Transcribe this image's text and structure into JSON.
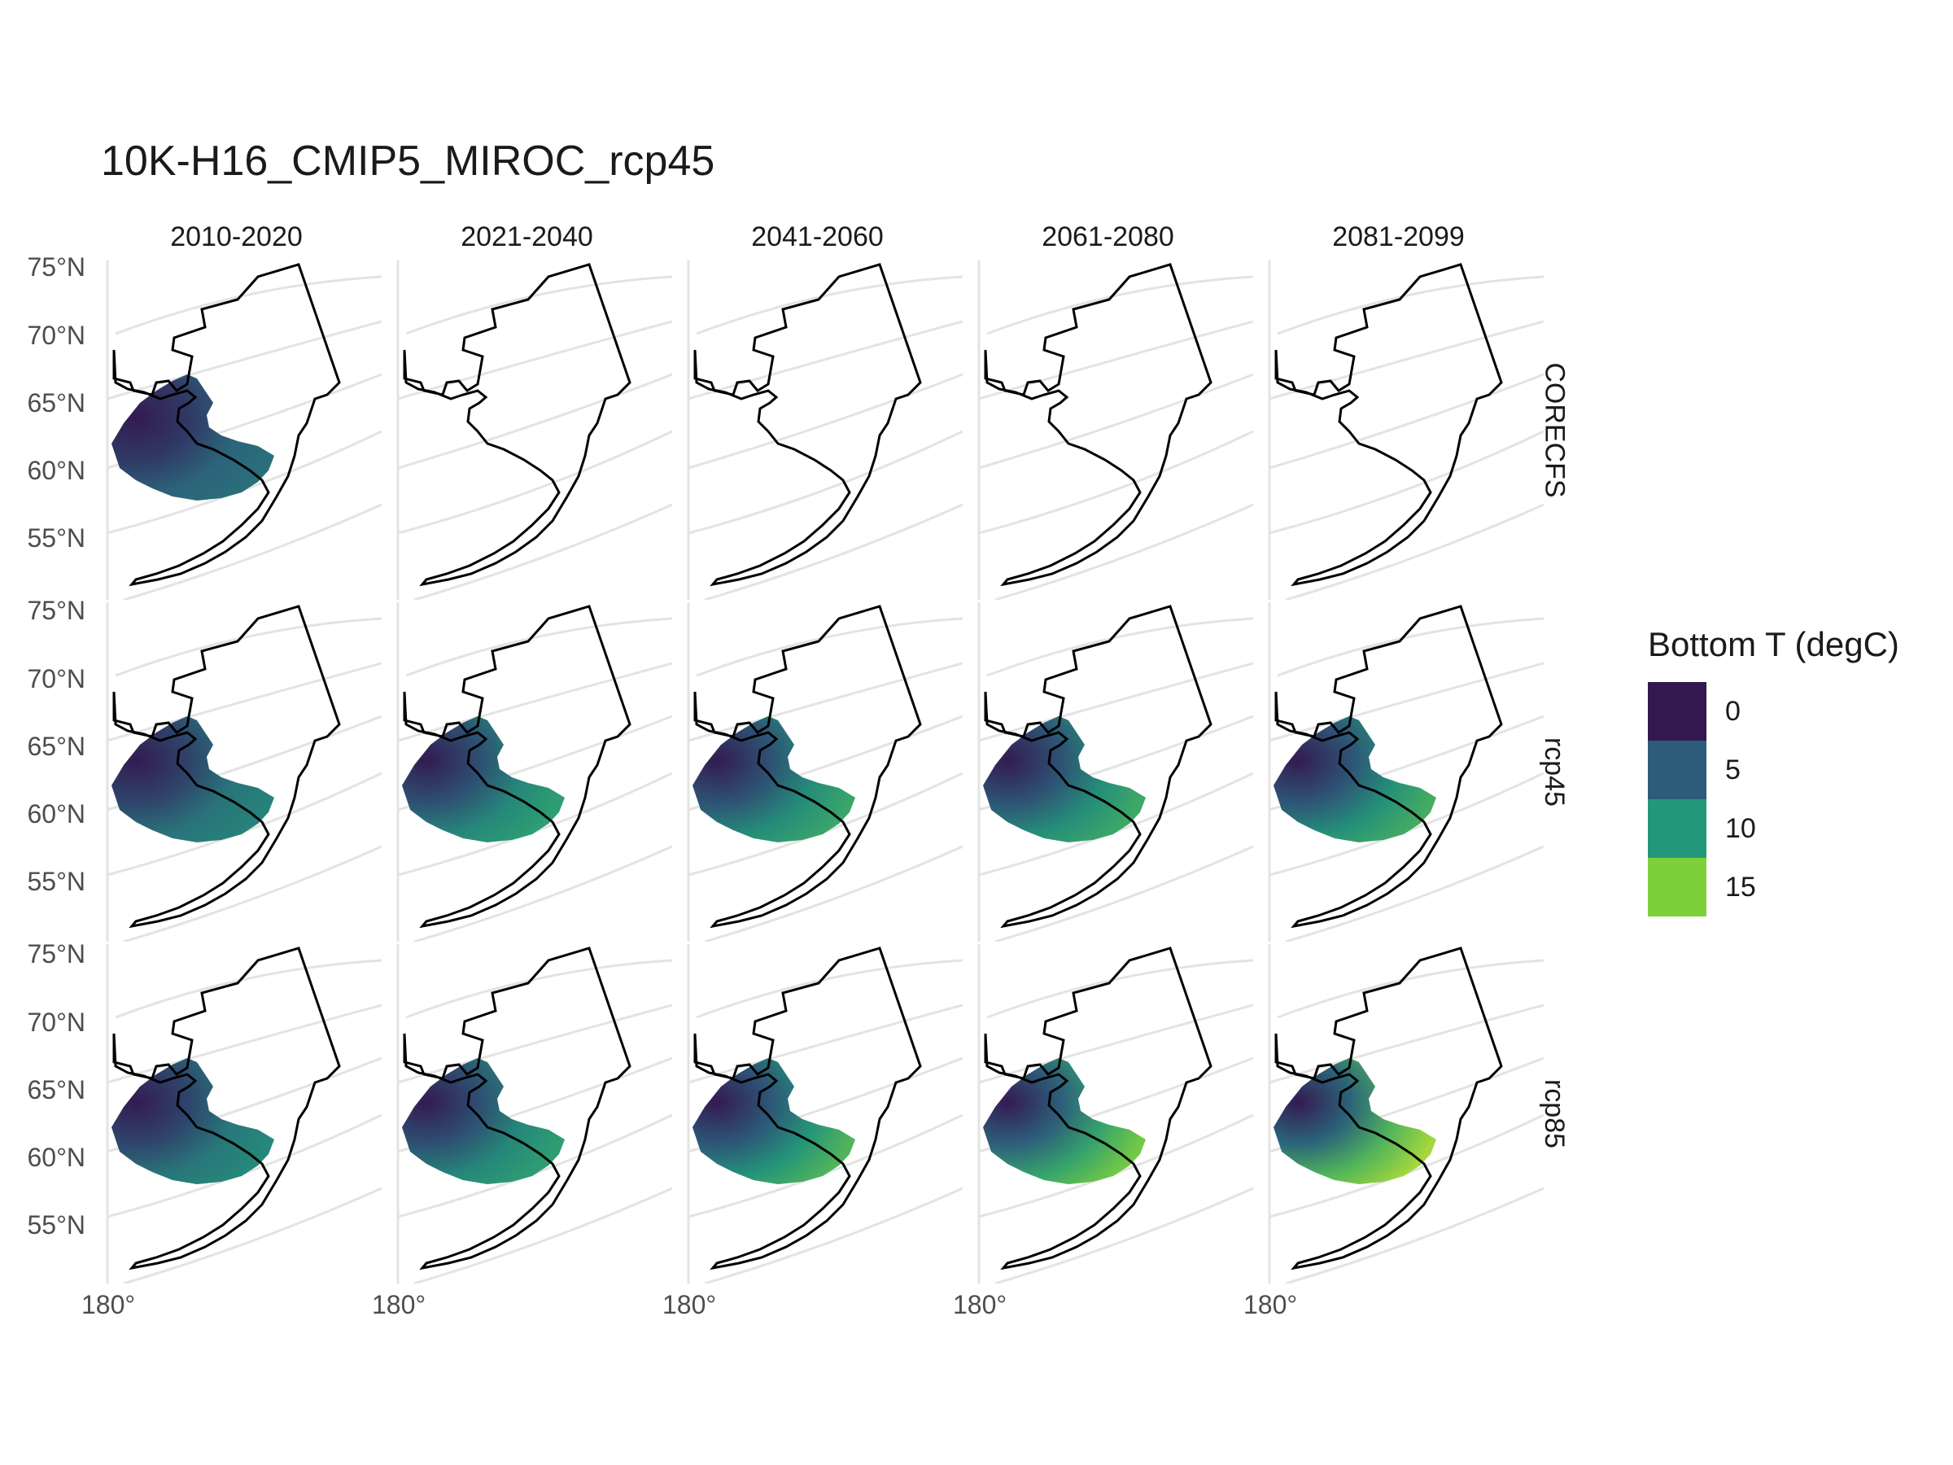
{
  "title": "10K-H16_CMIP5_MIROC_rcp45",
  "columns": [
    "2010-2020",
    "2021-2040",
    "2041-2060",
    "2061-2080",
    "2081-2099"
  ],
  "rows": [
    "CORECFS",
    "rcp45",
    "rcp85"
  ],
  "y_axis_ticks": [
    "75°N",
    "70°N",
    "65°N",
    "60°N",
    "55°N"
  ],
  "x_axis_tick": "180°",
  "legend": {
    "title": "Bottom T (degC)",
    "entries": [
      {
        "label": "0",
        "color": "#33174f"
      },
      {
        "label": "5",
        "color": "#2d5b7a"
      },
      {
        "label": "10",
        "color": "#23977a"
      },
      {
        "label": "15",
        "color": "#7ed03b"
      }
    ]
  },
  "panels": [
    {
      "row": "CORECFS",
      "col": "2010-2020",
      "has_data": true,
      "warmth": 0.1
    },
    {
      "row": "CORECFS",
      "col": "2021-2040",
      "has_data": false
    },
    {
      "row": "CORECFS",
      "col": "2041-2060",
      "has_data": false
    },
    {
      "row": "CORECFS",
      "col": "2061-2080",
      "has_data": false
    },
    {
      "row": "CORECFS",
      "col": "2081-2099",
      "has_data": false
    },
    {
      "row": "rcp45",
      "col": "2010-2020",
      "has_data": true,
      "warmth": 0.3
    },
    {
      "row": "rcp45",
      "col": "2021-2040",
      "has_data": true,
      "warmth": 0.55
    },
    {
      "row": "rcp45",
      "col": "2041-2060",
      "has_data": true,
      "warmth": 0.6
    },
    {
      "row": "rcp45",
      "col": "2061-2080",
      "has_data": true,
      "warmth": 0.62
    },
    {
      "row": "rcp45",
      "col": "2081-2099",
      "has_data": true,
      "warmth": 0.65
    },
    {
      "row": "rcp85",
      "col": "2010-2020",
      "has_data": true,
      "warmth": 0.35
    },
    {
      "row": "rcp85",
      "col": "2021-2040",
      "has_data": true,
      "warmth": 0.55
    },
    {
      "row": "rcp85",
      "col": "2041-2060",
      "has_data": true,
      "warmth": 0.7
    },
    {
      "row": "rcp85",
      "col": "2061-2080",
      "has_data": true,
      "warmth": 0.85
    },
    {
      "row": "rcp85",
      "col": "2081-2099",
      "has_data": true,
      "warmth": 1.0
    }
  ]
}
